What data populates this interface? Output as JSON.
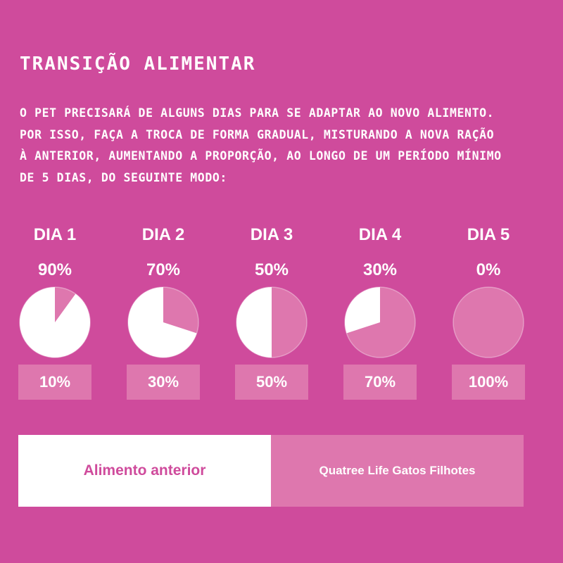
{
  "title": "TRANSIÇÃO ALIMENTAR",
  "intro_lines": [
    "O PET PRECISARÁ DE ALGUNS DIAS PARA SE ADAPTAR AO NOVO ALIMENTO.",
    "POR ISSO, FAÇA A TROCA DE FORMA GRADUAL, MISTURANDO A NOVA RAÇÃO",
    "À ANTERIOR, AUMENTANDO A PROPORÇÃO, AO LONGO DE UM PERÍODO MÍNIMO",
    "DE 5 DIAS, DO SEGUINTE MODO:"
  ],
  "colors": {
    "background": "#cf4b9c",
    "old_food": "#ffffff",
    "new_food": "#de77ae"
  },
  "chart_data": {
    "type": "pie",
    "categories": [
      "DIA 1",
      "DIA 2",
      "DIA 3",
      "DIA 4",
      "DIA 5"
    ],
    "series": [
      {
        "name": "Alimento anterior",
        "values": [
          90,
          70,
          50,
          30,
          0
        ],
        "labels": [
          "90%",
          "70%",
          "50%",
          "30%",
          "0%"
        ]
      },
      {
        "name": "Quatree Life Gatos Filhotes",
        "values": [
          10,
          30,
          50,
          70,
          100
        ],
        "labels": [
          "10%",
          "30%",
          "50%",
          "70%",
          "100%"
        ]
      }
    ],
    "legend": "bottom"
  }
}
